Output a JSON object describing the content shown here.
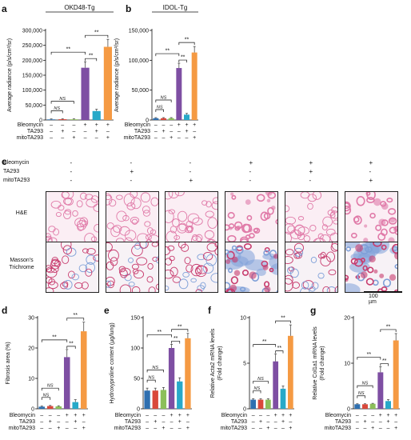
{
  "colors": {
    "Vehicle": "#2e6fb0",
    "TA293": "#d9483b",
    "mitoTA293": "#8cbf5a",
    "Bleomycin": "#7e4fa3",
    "Bleomycin+TA293": "#27a9c9",
    "Bleomycin+mitoTA293": "#f59a43"
  },
  "treatment_rows": {
    "labels": [
      "Bleomycin",
      "TA293",
      "mitoTA293"
    ],
    "signs": [
      [
        "–",
        "–",
        "–",
        "+",
        "+",
        "+"
      ],
      [
        "–",
        "+",
        "–",
        "–",
        "+",
        "–"
      ],
      [
        "–",
        "–",
        "+",
        "–",
        "–",
        "+"
      ]
    ]
  },
  "chart_data": [
    {
      "panel": "a",
      "type": "bar",
      "title": "OKD48-Tg",
      "ylabel": "Average radiance (p/s/cm²/sr)",
      "ylim": [
        0,
        300000
      ],
      "yticks": [
        "0",
        "50,000",
        "100,000",
        "150,000",
        "200,000",
        "250,000",
        "300,000"
      ],
      "tickvals": [
        0,
        50000,
        100000,
        150000,
        200000,
        250000,
        300000
      ],
      "values": [
        2000,
        2500,
        2200,
        175000,
        30000,
        245000
      ],
      "errors": [
        1500,
        1500,
        1500,
        20000,
        6000,
        25000
      ],
      "brackets": [
        {
          "from": 0,
          "to": 1,
          "label": "NS"
        },
        {
          "from": 0,
          "to": 2,
          "label": "NS"
        },
        {
          "from": 0,
          "to": 3,
          "label": "**"
        },
        {
          "from": 3,
          "to": 4,
          "label": "**"
        },
        {
          "from": 3,
          "to": 5,
          "label": "**"
        }
      ]
    },
    {
      "panel": "b",
      "type": "bar",
      "title": "IDOL-Tg",
      "ylabel": "Average radiance (p/s/cm²/sr)",
      "ylim": [
        0,
        150000
      ],
      "yticks": [
        "0",
        "50,000",
        "100,000",
        "150,000"
      ],
      "tickvals": [
        0,
        50000,
        100000,
        150000
      ],
      "values": [
        3000,
        3000,
        3000,
        87000,
        9000,
        113000
      ],
      "errors": [
        1000,
        1000,
        1000,
        8000,
        2000,
        10000
      ],
      "brackets": [
        {
          "from": 0,
          "to": 1,
          "label": "NS"
        },
        {
          "from": 0,
          "to": 2,
          "label": "NS"
        },
        {
          "from": 0,
          "to": 3,
          "label": "**"
        },
        {
          "from": 3,
          "to": 4,
          "label": "**"
        },
        {
          "from": 3,
          "to": 5,
          "label": "**"
        }
      ]
    },
    {
      "panel": "d",
      "type": "bar",
      "title": "",
      "ylabel": "Fibrosis area (%)",
      "ylim": [
        0,
        30
      ],
      "yticks": [
        "0",
        "10",
        "20",
        "30"
      ],
      "tickvals": [
        0,
        10,
        20,
        30
      ],
      "values": [
        0.7,
        0.9,
        0.8,
        17,
        2.2,
        25.5
      ],
      "errors": [
        0.2,
        0.2,
        0.2,
        2.5,
        0.8,
        3
      ],
      "brackets": [
        {
          "from": 0,
          "to": 1,
          "label": "NS"
        },
        {
          "from": 0,
          "to": 2,
          "label": "NS"
        },
        {
          "from": 0,
          "to": 3,
          "label": "**"
        },
        {
          "from": 3,
          "to": 4,
          "label": "**"
        },
        {
          "from": 3,
          "to": 5,
          "label": "**"
        }
      ]
    },
    {
      "panel": "e",
      "type": "bar",
      "title": "",
      "ylabel": "Hydroxyproline content (µg/lung)",
      "ylim": [
        0,
        150
      ],
      "yticks": [
        "0",
        "50",
        "100",
        "150"
      ],
      "tickvals": [
        0,
        50,
        100,
        150
      ],
      "values": [
        30,
        30,
        31,
        100,
        45,
        116
      ],
      "errors": [
        4,
        4,
        4,
        6,
        6,
        8
      ],
      "brackets": [
        {
          "from": 0,
          "to": 1,
          "label": "NS"
        },
        {
          "from": 0,
          "to": 2,
          "label": "NS"
        },
        {
          "from": 0,
          "to": 3,
          "label": "**"
        },
        {
          "from": 3,
          "to": 4,
          "label": "**"
        },
        {
          "from": 3,
          "to": 5,
          "label": "**"
        }
      ]
    },
    {
      "panel": "f",
      "type": "bar",
      "title": "",
      "ylabel": "Relative Acta2 mRNA levels (Fold change)",
      "ylim": [
        0,
        10
      ],
      "yticks": [
        "0",
        "5",
        "10"
      ],
      "tickvals": [
        0,
        5,
        10
      ],
      "values": [
        1,
        1,
        1,
        5.2,
        2.2,
        8
      ],
      "errors": [
        0.1,
        0.1,
        0.1,
        0.8,
        0.3,
        1.2
      ],
      "brackets": [
        {
          "from": 0,
          "to": 1,
          "label": "NS"
        },
        {
          "from": 0,
          "to": 2,
          "label": "NS"
        },
        {
          "from": 0,
          "to": 3,
          "label": "**"
        },
        {
          "from": 3,
          "to": 4,
          "label": "**"
        },
        {
          "from": 3,
          "to": 5,
          "label": "**"
        }
      ]
    },
    {
      "panel": "g",
      "type": "bar",
      "title": "",
      "ylabel": "Relative Col1a1 mRNA levels (Fold change)",
      "ylim": [
        0,
        20
      ],
      "yticks": [
        "0",
        "10",
        "20"
      ],
      "tickvals": [
        0,
        10,
        20
      ],
      "values": [
        1,
        1,
        1.1,
        8,
        1.7,
        15
      ],
      "errors": [
        0.1,
        0.1,
        0.1,
        1.2,
        0.3,
        1.5
      ],
      "brackets": [
        {
          "from": 0,
          "to": 1,
          "label": "NS"
        },
        {
          "from": 0,
          "to": 2,
          "label": "NS"
        },
        {
          "from": 0,
          "to": 3,
          "label": "**"
        },
        {
          "from": 3,
          "to": 4,
          "label": "**"
        },
        {
          "from": 3,
          "to": 5,
          "label": "**"
        }
      ]
    }
  ],
  "histology": {
    "panel": "c",
    "row_labels": [
      "H&E",
      "Masson's Trichrome"
    ],
    "scale_bar": "100 µm",
    "conditions": [
      {
        "Bleomycin": "-",
        "TA293": "-",
        "mitoTA293": "-"
      },
      {
        "Bleomycin": "-",
        "TA293": "+",
        "mitoTA293": "-"
      },
      {
        "Bleomycin": "-",
        "TA293": "-",
        "mitoTA293": "+"
      },
      {
        "Bleomycin": "+",
        "TA293": "-",
        "mitoTA293": "-"
      },
      {
        "Bleomycin": "+",
        "TA293": "+",
        "mitoTA293": "-"
      },
      {
        "Bleomycin": "+",
        "TA293": "-",
        "mitoTA293": "+"
      }
    ],
    "signs": [
      [
        "-",
        "-",
        "-",
        "+",
        "+",
        "+"
      ],
      [
        "-",
        "+",
        "-",
        "-",
        "+",
        "-"
      ],
      [
        "-",
        "-",
        "+",
        "-",
        "-",
        "+"
      ]
    ],
    "fibrotic": [
      false,
      false,
      false,
      true,
      false,
      true
    ],
    "stain_colors": {
      "he_pink": "#e07aa8",
      "he_bg": "#fbeef4",
      "mt_blue": "#7fa0d8",
      "mt_red": "#c83c6e"
    }
  }
}
